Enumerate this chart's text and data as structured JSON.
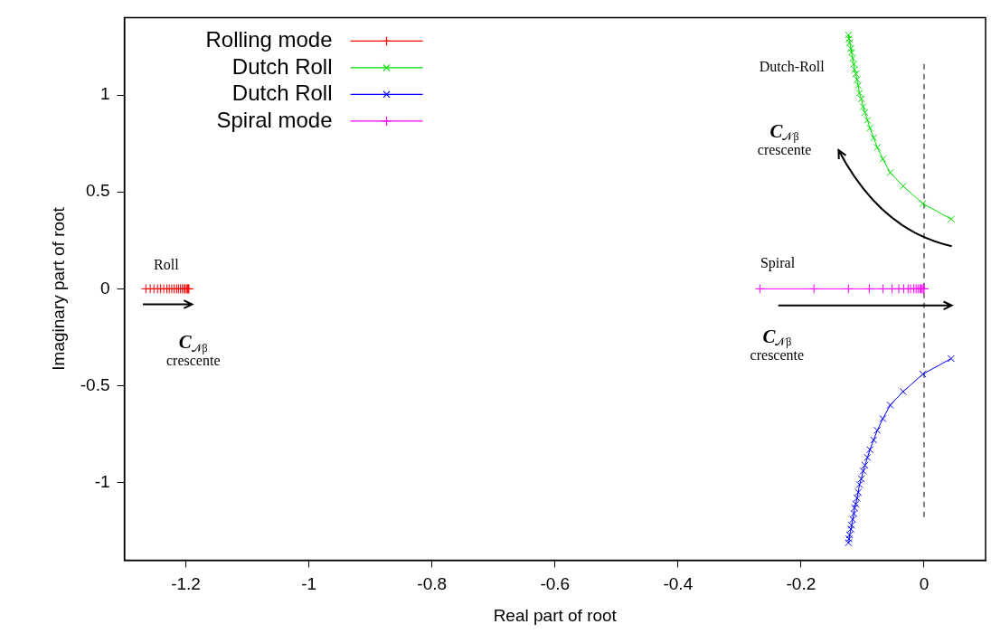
{
  "chart_data": {
    "type": "line",
    "xlabel": "Real part of root",
    "ylabel": "Imaginary part of root",
    "xlim": [
      -1.3,
      0.1
    ],
    "xticks": [
      -1.2,
      -1,
      -0.8,
      -0.6,
      -0.4,
      -0.2,
      0
    ],
    "ylim": [
      -1.4,
      1.4
    ],
    "yticks": [
      -1,
      -0.5,
      0,
      0.5,
      1
    ],
    "grid": false,
    "legend": "top left",
    "line_style": "solid",
    "series": [
      {
        "name": "Rolling mode",
        "color": "#ff0000",
        "marker": "plus",
        "x": [
          -1.265,
          -1.258,
          -1.252,
          -1.246,
          -1.241,
          -1.236,
          -1.231,
          -1.227,
          -1.223,
          -1.219,
          -1.215,
          -1.212,
          -1.209,
          -1.206,
          -1.203,
          -1.201,
          -1.199,
          -1.197,
          -1.196,
          -1.195
        ],
        "values": [
          0,
          0,
          0,
          0,
          0,
          0,
          0,
          0,
          0,
          0,
          0,
          0,
          0,
          0,
          0,
          0,
          0,
          0,
          0,
          0
        ]
      },
      {
        "name": "Dutch Roll",
        "color": "#00dd00",
        "marker": "cross",
        "x": [
          -0.123,
          -0.122,
          -0.121,
          -0.119,
          -0.118,
          -0.116,
          -0.114,
          -0.113,
          -0.111,
          -0.109,
          -0.107,
          -0.105,
          -0.102,
          -0.099,
          -0.096,
          -0.092,
          -0.088,
          -0.082,
          -0.076,
          -0.067,
          -0.055,
          -0.034,
          -0.002,
          0.044
        ],
        "values": [
          1.31,
          1.29,
          1.27,
          1.24,
          1.22,
          1.19,
          1.16,
          1.13,
          1.11,
          1.08,
          1.05,
          1.01,
          0.98,
          0.94,
          0.91,
          0.87,
          0.83,
          0.78,
          0.73,
          0.67,
          0.6,
          0.53,
          0.44,
          0.36
        ]
      },
      {
        "name": "Dutch Roll",
        "color": "#0000ff",
        "marker": "cross",
        "x": [
          -0.123,
          -0.122,
          -0.121,
          -0.119,
          -0.118,
          -0.116,
          -0.114,
          -0.113,
          -0.111,
          -0.109,
          -0.107,
          -0.105,
          -0.102,
          -0.099,
          -0.096,
          -0.092,
          -0.088,
          -0.082,
          -0.076,
          -0.067,
          -0.055,
          -0.034,
          -0.002,
          0.044
        ],
        "values": [
          -1.31,
          -1.29,
          -1.27,
          -1.24,
          -1.22,
          -1.19,
          -1.16,
          -1.13,
          -1.11,
          -1.08,
          -1.05,
          -1.01,
          -0.98,
          -0.94,
          -0.91,
          -0.87,
          -0.83,
          -0.78,
          -0.73,
          -0.67,
          -0.6,
          -0.53,
          -0.44,
          -0.36
        ]
      },
      {
        "name": "Spiral mode",
        "color": "#ff00ff",
        "marker": "plus",
        "x": [
          -0.267,
          -0.179,
          -0.123,
          -0.089,
          -0.067,
          -0.052,
          -0.041,
          -0.033,
          -0.026,
          -0.022,
          -0.017,
          -0.013,
          -0.01,
          -0.007,
          -0.005,
          -0.003,
          -0.001,
          0
        ],
        "values": [
          0,
          0,
          0,
          0,
          0,
          0,
          0,
          0,
          0,
          0,
          0,
          0,
          0,
          0,
          0,
          0,
          0,
          0
        ]
      }
    ],
    "ref_lines": [
      {
        "axis": "x",
        "value": 0,
        "color": "#808080",
        "line_style": "dashed"
      }
    ],
    "annotations": [
      "Dutch-Roll",
      "C$_{𝒩β}$\ncrescente",
      "Spiral",
      "C$_{𝒩β}$\ncrescente",
      "Roll",
      "C$_{𝒩β}$\ncrescente"
    ]
  }
}
